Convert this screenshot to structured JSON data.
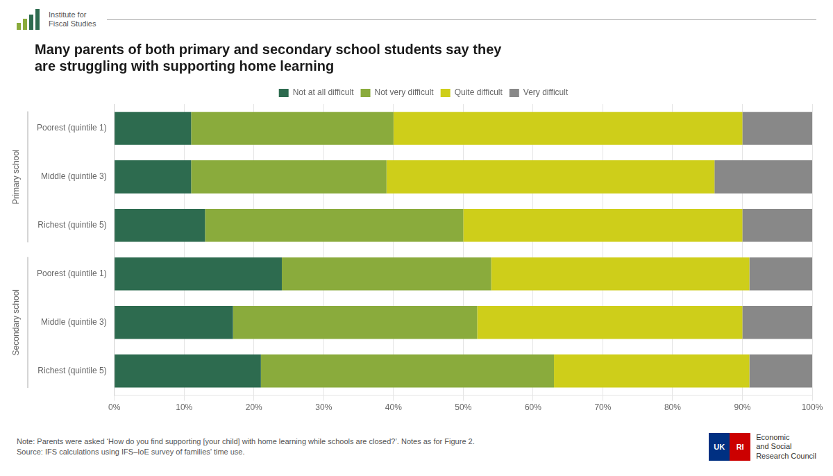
{
  "chart_data": {
    "type": "bar",
    "orientation": "horizontal",
    "stacked": true,
    "title": [
      "Many parents of both primary and secondary school students say they",
      "are struggling with supporting home learning"
    ],
    "categories": [
      "Poorest (quintile 1)",
      "Middle (quintile 3)",
      "Richest (quintile 5)",
      "Poorest (quintile 1)",
      "Middle (quintile 3)",
      "Richest (quintile 5)"
    ],
    "groups": [
      {
        "name": "Primary school",
        "categories": [
          "Poorest (quintile 1)",
          "Middle (quintile 3)",
          "Richest (quintile 5)"
        ]
      },
      {
        "name": "Secondary school",
        "categories": [
          "Poorest (quintile 1)",
          "Middle (quintile 3)",
          "Richest (quintile 5)"
        ]
      }
    ],
    "series": [
      {
        "name": "Not at all difficult",
        "color": "#2d6b4f",
        "values": [
          11,
          11,
          13,
          24,
          17,
          21
        ]
      },
      {
        "name": "Not very difficult",
        "color": "#8aab3c",
        "values": [
          29,
          28,
          37,
          30,
          35,
          42
        ]
      },
      {
        "name": "Quite difficult",
        "color": "#cece1a",
        "values": [
          50,
          47,
          40,
          37,
          38,
          28
        ]
      },
      {
        "name": "Very difficult",
        "color": "#888888",
        "values": [
          10,
          14,
          10,
          9,
          10,
          9
        ]
      }
    ],
    "xlim": [
      0,
      100
    ],
    "xticks": [
      {
        "value": 0,
        "label": "0%"
      },
      {
        "value": 10,
        "label": "10%"
      },
      {
        "value": 20,
        "label": "20%"
      },
      {
        "value": 30,
        "label": "30%"
      },
      {
        "value": 40,
        "label": "40%"
      },
      {
        "value": 50,
        "label": "50%"
      },
      {
        "value": 60,
        "label": "60%"
      },
      {
        "value": 70,
        "label": "70%"
      },
      {
        "value": 80,
        "label": "80%"
      },
      {
        "value": 90,
        "label": "90%"
      },
      {
        "value": 100,
        "label": "100%"
      }
    ],
    "grid": "x",
    "legend": "top",
    "note": "Note: Parents were asked ‘How do you find supporting [your child] with home learning while schools are closed?’. Notes as for Figure 2.\nSource: IFS calculations using IFS–IoE survey of families’ time use.",
    "annotations": [
      "Institute for\nFiscal Studies",
      "UK",
      "RI",
      "Economic\nand Social\nResearch Council"
    ]
  }
}
